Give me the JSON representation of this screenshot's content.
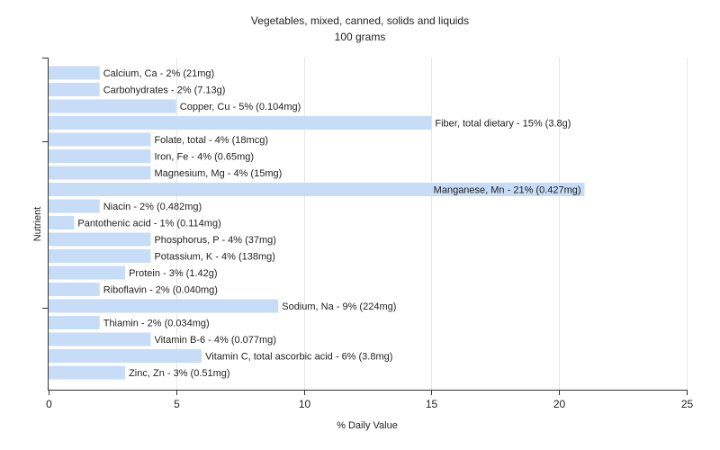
{
  "chart_data": {
    "type": "bar",
    "orientation": "horizontal",
    "title": "Vegetables, mixed, canned, solids and liquids",
    "subtitle": "100 grams",
    "xlabel": "% Daily Value",
    "ylabel": "Nutrient",
    "xlim": [
      0,
      25
    ],
    "xticks": [
      0,
      5,
      10,
      15,
      20,
      25
    ],
    "grid": true,
    "legend": "none",
    "colors": {
      "bar": "#c6dcf7",
      "grid": "#e6e6e6",
      "axis": "#333333",
      "text": "#222222"
    },
    "categories": [
      "Calcium, Ca",
      "Carbohydrates",
      "Copper, Cu",
      "Fiber, total dietary",
      "Folate, total",
      "Iron, Fe",
      "Magnesium, Mg",
      "Manganese, Mn",
      "Niacin",
      "Pantothenic acid",
      "Phosphorus, P",
      "Potassium, K",
      "Protein",
      "Riboflavin",
      "Sodium, Na",
      "Thiamin",
      "Vitamin B-6",
      "Vitamin C, total ascorbic acid",
      "Zinc, Zn"
    ],
    "values": [
      2,
      2,
      5,
      15,
      4,
      4,
      4,
      21,
      2,
      1,
      4,
      4,
      3,
      2,
      9,
      2,
      4,
      6,
      3
    ],
    "labels": [
      "Calcium, Ca - 2% (21mg)",
      "Carbohydrates - 2% (7.13g)",
      "Copper, Cu - 5% (0.104mg)",
      "Fiber, total dietary - 15% (3.8g)",
      "Folate, total - 4% (18mcg)",
      "Iron, Fe - 4% (0.65mg)",
      "Magnesium, Mg - 4% (15mg)",
      "Manganese, Mn - 21% (0.427mg)",
      "Niacin - 2% (0.482mg)",
      "Pantothenic acid - 1% (0.114mg)",
      "Phosphorus, P - 4% (37mg)",
      "Potassium, K - 4% (138mg)",
      "Protein - 3% (1.42g)",
      "Riboflavin - 2% (0.040mg)",
      "Sodium, Na - 9% (224mg)",
      "Thiamin - 2% (0.034mg)",
      "Vitamin B-6 - 4% (0.077mg)",
      "Vitamin C, total ascorbic acid - 6% (3.8mg)",
      "Zinc, Zn - 3% (0.51mg)"
    ]
  }
}
